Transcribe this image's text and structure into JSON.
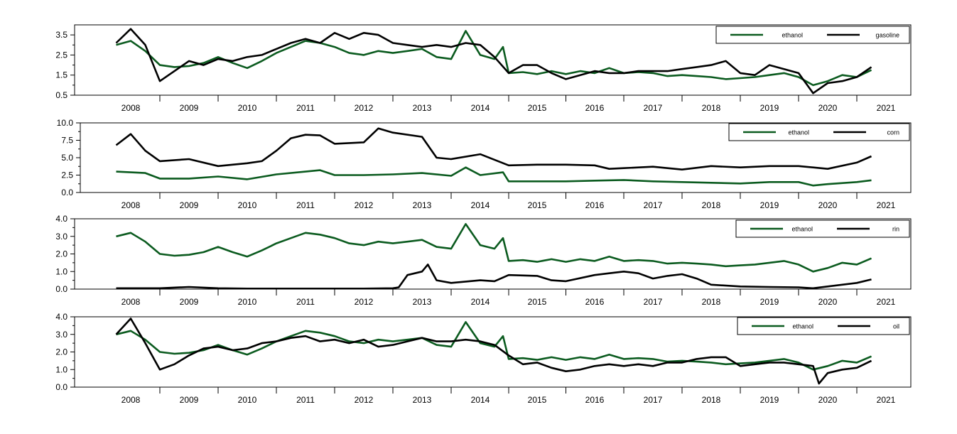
{
  "colors": {
    "ethanol": "#0b5b1f",
    "other": "#000000"
  },
  "x_years": [
    "2008",
    "2009",
    "2010",
    "2011",
    "2012",
    "2013",
    "2014",
    "2015",
    "2016",
    "2017",
    "2018",
    "2019",
    "2020",
    "2021"
  ],
  "chart_data": [
    {
      "type": "line",
      "legend_position": "top-right",
      "ylim": [
        0.5,
        4.0
      ],
      "yticks": [
        "3.5",
        "2.5",
        "1.5",
        "0.5"
      ],
      "yticks_values": [
        3.5,
        2.5,
        1.5,
        0.5
      ],
      "series": [
        {
          "name": "ethanol",
          "color": "#0b5b1f",
          "x": [
            2007.75,
            2008.0,
            2008.25,
            2008.5,
            2008.75,
            2009.0,
            2009.25,
            2009.5,
            2009.75,
            2010.0,
            2010.25,
            2010.5,
            2010.75,
            2011.0,
            2011.25,
            2011.5,
            2011.75,
            2012.0,
            2012.25,
            2012.5,
            2012.75,
            2013.0,
            2013.25,
            2013.5,
            2013.75,
            2014.0,
            2014.25,
            2014.4,
            2014.5,
            2014.75,
            2015.0,
            2015.25,
            2015.5,
            2015.75,
            2016.0,
            2016.25,
            2016.5,
            2016.75,
            2017.0,
            2017.25,
            2017.5,
            2017.75,
            2018.0,
            2018.25,
            2018.5,
            2018.75,
            2019.0,
            2019.25,
            2019.5,
            2019.75,
            2020.0,
            2020.25,
            2020.5,
            2020.75
          ],
          "y": [
            3.0,
            3.2,
            2.7,
            2.0,
            1.9,
            1.95,
            2.1,
            2.4,
            2.1,
            1.85,
            2.2,
            2.6,
            2.9,
            3.2,
            3.1,
            2.9,
            2.6,
            2.5,
            2.7,
            2.6,
            2.7,
            2.8,
            2.4,
            2.3,
            3.7,
            2.5,
            2.3,
            2.9,
            1.6,
            1.65,
            1.55,
            1.7,
            1.55,
            1.7,
            1.6,
            1.85,
            1.6,
            1.65,
            1.6,
            1.45,
            1.5,
            1.45,
            1.4,
            1.3,
            1.35,
            1.4,
            1.5,
            1.6,
            1.4,
            1.0,
            1.2,
            1.5,
            1.4,
            1.75
          ]
        },
        {
          "name": "gasoline",
          "color": "#000000",
          "x": [
            2007.75,
            2008.0,
            2008.25,
            2008.5,
            2008.75,
            2009.0,
            2009.25,
            2009.5,
            2009.75,
            2010.0,
            2010.25,
            2010.5,
            2010.75,
            2011.0,
            2011.25,
            2011.5,
            2011.75,
            2012.0,
            2012.25,
            2012.5,
            2012.75,
            2013.0,
            2013.25,
            2013.5,
            2013.75,
            2014.0,
            2014.25,
            2014.5,
            2014.75,
            2015.0,
            2015.25,
            2015.5,
            2015.75,
            2016.0,
            2016.25,
            2016.5,
            2016.75,
            2017.0,
            2017.25,
            2017.5,
            2017.75,
            2018.0,
            2018.25,
            2018.5,
            2018.75,
            2019.0,
            2019.25,
            2019.5,
            2019.75,
            2020.0,
            2020.25,
            2020.5,
            2020.75
          ],
          "y": [
            3.1,
            3.8,
            3.0,
            1.2,
            1.7,
            2.2,
            2.0,
            2.3,
            2.2,
            2.4,
            2.5,
            2.8,
            3.1,
            3.3,
            3.1,
            3.6,
            3.3,
            3.6,
            3.5,
            3.1,
            3.0,
            2.9,
            3.0,
            2.9,
            3.1,
            3.0,
            2.4,
            1.6,
            2.0,
            2.0,
            1.6,
            1.3,
            1.5,
            1.7,
            1.6,
            1.6,
            1.7,
            1.7,
            1.7,
            1.8,
            1.9,
            2.0,
            2.2,
            1.6,
            1.5,
            2.0,
            1.8,
            1.6,
            0.6,
            1.1,
            1.2,
            1.4,
            1.9
          ]
        }
      ]
    },
    {
      "type": "line",
      "legend_position": "top-right",
      "ylim": [
        0.0,
        10.0
      ],
      "yticks": [
        "10.0",
        "7.5",
        "5.0",
        "2.5",
        "0.0"
      ],
      "yticks_values": [
        10.0,
        7.5,
        5.0,
        2.5,
        0.0
      ],
      "series": [
        {
          "name": "ethanol",
          "color": "#0b5b1f",
          "x": [
            2007.75,
            2008.25,
            2008.5,
            2009.0,
            2009.5,
            2010.0,
            2010.5,
            2011.0,
            2011.25,
            2011.5,
            2012.0,
            2012.5,
            2013.0,
            2013.5,
            2013.75,
            2014.0,
            2014.4,
            2014.5,
            2015.0,
            2015.5,
            2016.0,
            2016.5,
            2017.0,
            2017.5,
            2018.0,
            2018.5,
            2019.0,
            2019.5,
            2019.75,
            2020.0,
            2020.5,
            2020.75
          ],
          "y": [
            3.0,
            2.8,
            2.0,
            2.0,
            2.3,
            1.9,
            2.6,
            3.0,
            3.2,
            2.5,
            2.5,
            2.6,
            2.8,
            2.4,
            3.6,
            2.5,
            2.9,
            1.6,
            1.6,
            1.6,
            1.7,
            1.8,
            1.6,
            1.5,
            1.4,
            1.3,
            1.5,
            1.5,
            1.0,
            1.2,
            1.5,
            1.75
          ]
        },
        {
          "name": "corn",
          "color": "#000000",
          "x": [
            2007.75,
            2008.0,
            2008.25,
            2008.5,
            2009.0,
            2009.5,
            2010.0,
            2010.25,
            2010.5,
            2010.75,
            2011.0,
            2011.25,
            2011.5,
            2012.0,
            2012.25,
            2012.5,
            2013.0,
            2013.25,
            2013.5,
            2014.0,
            2014.5,
            2015.0,
            2015.5,
            2016.0,
            2016.25,
            2016.5,
            2017.0,
            2017.5,
            2018.0,
            2018.5,
            2019.0,
            2019.5,
            2020.0,
            2020.5,
            2020.75
          ],
          "y": [
            6.8,
            8.4,
            6.0,
            4.5,
            4.8,
            3.8,
            4.2,
            4.5,
            6.0,
            7.8,
            8.3,
            8.2,
            7.0,
            7.2,
            9.2,
            8.6,
            8.0,
            5.0,
            4.8,
            5.5,
            3.9,
            4.0,
            4.0,
            3.9,
            3.4,
            3.5,
            3.7,
            3.3,
            3.8,
            3.6,
            3.8,
            3.8,
            3.4,
            4.3,
            5.2
          ]
        }
      ]
    },
    {
      "type": "line",
      "legend_position": "top-right",
      "ylim": [
        0.0,
        4.0
      ],
      "yticks": [
        "4.0",
        "3.0",
        "2.0",
        "1.0",
        "0.0"
      ],
      "yticks_values": [
        4.0,
        3.0,
        2.0,
        1.0,
        0.0
      ],
      "series": [
        {
          "name": "ethanol",
          "color": "#0b5b1f",
          "x": [
            2007.75,
            2008.0,
            2008.25,
            2008.5,
            2008.75,
            2009.0,
            2009.25,
            2009.5,
            2009.75,
            2010.0,
            2010.25,
            2010.5,
            2010.75,
            2011.0,
            2011.25,
            2011.5,
            2011.75,
            2012.0,
            2012.25,
            2012.5,
            2012.75,
            2013.0,
            2013.25,
            2013.5,
            2013.75,
            2014.0,
            2014.25,
            2014.4,
            2014.5,
            2014.75,
            2015.0,
            2015.25,
            2015.5,
            2015.75,
            2016.0,
            2016.25,
            2016.5,
            2016.75,
            2017.0,
            2017.25,
            2017.5,
            2017.75,
            2018.0,
            2018.25,
            2018.5,
            2018.75,
            2019.0,
            2019.25,
            2019.5,
            2019.75,
            2020.0,
            2020.25,
            2020.5,
            2020.75
          ],
          "y": [
            3.0,
            3.2,
            2.7,
            2.0,
            1.9,
            1.95,
            2.1,
            2.4,
            2.1,
            1.85,
            2.2,
            2.6,
            2.9,
            3.2,
            3.1,
            2.9,
            2.6,
            2.5,
            2.7,
            2.6,
            2.7,
            2.8,
            2.4,
            2.3,
            3.7,
            2.5,
            2.3,
            2.9,
            1.6,
            1.65,
            1.55,
            1.7,
            1.55,
            1.7,
            1.6,
            1.85,
            1.6,
            1.65,
            1.6,
            1.45,
            1.5,
            1.45,
            1.4,
            1.3,
            1.35,
            1.4,
            1.5,
            1.6,
            1.4,
            1.0,
            1.2,
            1.5,
            1.4,
            1.75
          ]
        },
        {
          "name": "rin",
          "color": "#000000",
          "x": [
            2007.75,
            2008.5,
            2009.0,
            2009.5,
            2010.0,
            2011.0,
            2012.0,
            2012.5,
            2012.6,
            2012.75,
            2013.0,
            2013.1,
            2013.25,
            2013.5,
            2014.0,
            2014.25,
            2014.5,
            2015.0,
            2015.25,
            2015.5,
            2016.0,
            2016.25,
            2016.5,
            2016.75,
            2017.0,
            2017.25,
            2017.5,
            2017.75,
            2018.0,
            2018.5,
            2019.0,
            2019.5,
            2019.75,
            2020.0,
            2020.25,
            2020.5,
            2020.75
          ],
          "y": [
            0.05,
            0.05,
            0.12,
            0.05,
            0.03,
            0.03,
            0.03,
            0.05,
            0.1,
            0.8,
            1.0,
            1.4,
            0.5,
            0.35,
            0.5,
            0.45,
            0.8,
            0.75,
            0.5,
            0.45,
            0.8,
            0.9,
            1.0,
            0.9,
            0.6,
            0.75,
            0.85,
            0.6,
            0.25,
            0.15,
            0.12,
            0.1,
            0.05,
            0.15,
            0.25,
            0.35,
            0.55
          ]
        }
      ]
    },
    {
      "type": "line",
      "legend_position": "top-right",
      "ylim": [
        0.0,
        4.0
      ],
      "yticks": [
        "4.0",
        "3.0",
        "2.0",
        "1.0",
        "0.0"
      ],
      "yticks_values": [
        4.0,
        3.0,
        2.0,
        1.0,
        0.0
      ],
      "series": [
        {
          "name": "ethanol",
          "color": "#0b5b1f",
          "x": [
            2007.75,
            2008.0,
            2008.25,
            2008.5,
            2008.75,
            2009.0,
            2009.25,
            2009.5,
            2009.75,
            2010.0,
            2010.25,
            2010.5,
            2010.75,
            2011.0,
            2011.25,
            2011.5,
            2011.75,
            2012.0,
            2012.25,
            2012.5,
            2012.75,
            2013.0,
            2013.25,
            2013.5,
            2013.75,
            2014.0,
            2014.25,
            2014.4,
            2014.5,
            2014.75,
            2015.0,
            2015.25,
            2015.5,
            2015.75,
            2016.0,
            2016.25,
            2016.5,
            2016.75,
            2017.0,
            2017.25,
            2017.5,
            2017.75,
            2018.0,
            2018.25,
            2018.5,
            2018.75,
            2019.0,
            2019.25,
            2019.5,
            2019.75,
            2020.0,
            2020.25,
            2020.5,
            2020.75
          ],
          "y": [
            3.0,
            3.2,
            2.7,
            2.0,
            1.9,
            1.95,
            2.1,
            2.4,
            2.1,
            1.85,
            2.2,
            2.6,
            2.9,
            3.2,
            3.1,
            2.9,
            2.6,
            2.5,
            2.7,
            2.6,
            2.7,
            2.8,
            2.4,
            2.3,
            3.7,
            2.5,
            2.3,
            2.9,
            1.6,
            1.65,
            1.55,
            1.7,
            1.55,
            1.7,
            1.6,
            1.85,
            1.6,
            1.65,
            1.6,
            1.45,
            1.5,
            1.45,
            1.4,
            1.3,
            1.35,
            1.4,
            1.5,
            1.6,
            1.4,
            1.0,
            1.2,
            1.5,
            1.4,
            1.75
          ]
        },
        {
          "name": "oil",
          "color": "#000000",
          "x": [
            2007.75,
            2008.0,
            2008.25,
            2008.5,
            2008.75,
            2009.0,
            2009.25,
            2009.5,
            2009.75,
            2010.0,
            2010.25,
            2010.5,
            2010.75,
            2011.0,
            2011.25,
            2011.5,
            2011.75,
            2012.0,
            2012.25,
            2012.5,
            2012.75,
            2013.0,
            2013.25,
            2013.5,
            2013.75,
            2014.0,
            2014.25,
            2014.5,
            2014.75,
            2015.0,
            2015.25,
            2015.5,
            2015.75,
            2016.0,
            2016.25,
            2016.5,
            2016.75,
            2017.0,
            2017.25,
            2017.5,
            2017.75,
            2018.0,
            2018.25,
            2018.5,
            2018.75,
            2019.0,
            2019.25,
            2019.5,
            2019.75,
            2019.85,
            2020.0,
            2020.25,
            2020.5,
            2020.75
          ],
          "y": [
            3.0,
            3.9,
            2.5,
            1.0,
            1.3,
            1.8,
            2.2,
            2.3,
            2.1,
            2.2,
            2.5,
            2.6,
            2.8,
            2.9,
            2.6,
            2.7,
            2.5,
            2.7,
            2.3,
            2.4,
            2.6,
            2.8,
            2.6,
            2.6,
            2.7,
            2.6,
            2.4,
            1.8,
            1.3,
            1.4,
            1.1,
            0.9,
            1.0,
            1.2,
            1.3,
            1.2,
            1.3,
            1.2,
            1.4,
            1.4,
            1.6,
            1.7,
            1.7,
            1.2,
            1.3,
            1.4,
            1.4,
            1.3,
            1.2,
            0.2,
            0.8,
            1.0,
            1.1,
            1.5
          ]
        }
      ]
    }
  ]
}
